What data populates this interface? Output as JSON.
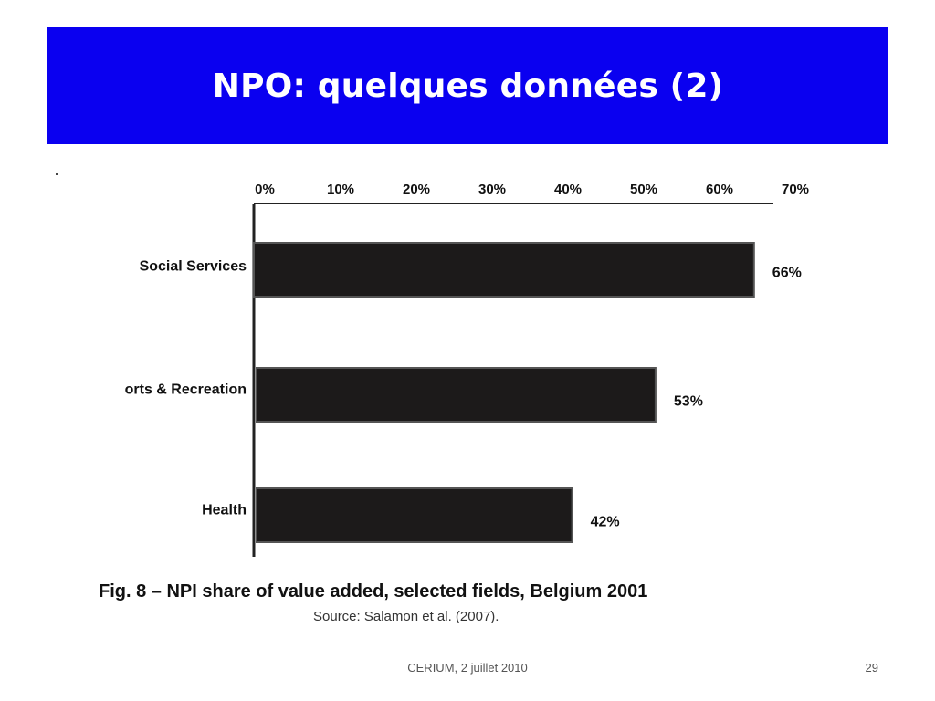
{
  "slide": {
    "title": "NPO: quelques données (2)",
    "caption": "Fig. 8  –  NPI share of value added, selected fields, Belgium 2001",
    "source": "Source: Salamon et al. (2007).",
    "footer": "CERIUM, 2 juillet 2010",
    "page_number": "29",
    "banner_color": "#0a00f0"
  },
  "chart_data": {
    "type": "bar",
    "orientation": "horizontal",
    "categories": [
      "Social Services",
      "orts & Recreation",
      "Health"
    ],
    "values": [
      66,
      53,
      42
    ],
    "value_labels": [
      "66%",
      "53%",
      "42%"
    ],
    "x_ticks": [
      "0%",
      "10%",
      "20%",
      "30%",
      "40%",
      "50%",
      "60%",
      "70%"
    ],
    "xlim": [
      0,
      70
    ],
    "axis_position": "top",
    "bar_color": "#1c1a1a",
    "grid": false
  }
}
